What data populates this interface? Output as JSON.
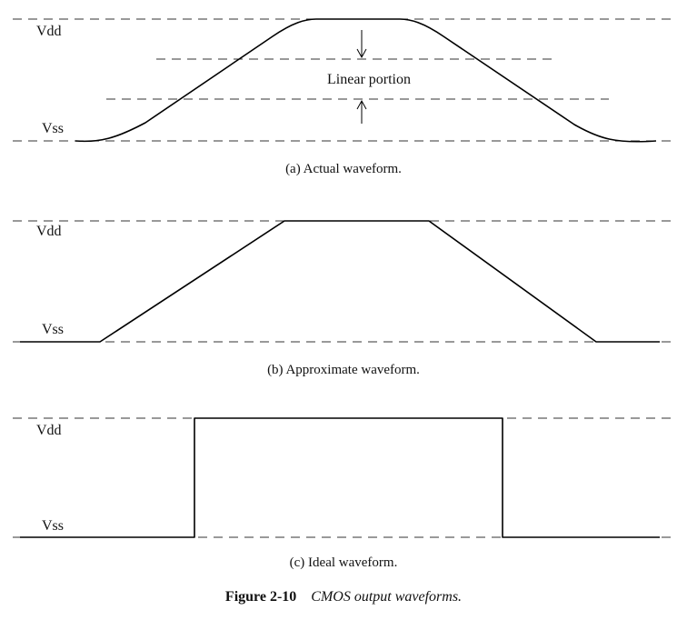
{
  "panel_a": {
    "vdd_label": "Vdd",
    "vss_label": "Vss",
    "linear_label": "Linear portion",
    "caption": "(a) Actual waveform."
  },
  "panel_b": {
    "vdd_label": "Vdd",
    "vss_label": "Vss",
    "caption": "(b) Approximate waveform."
  },
  "panel_c": {
    "vdd_label": "Vdd",
    "vss_label": "Vss",
    "caption": "(c) Ideal waveform."
  },
  "figure": {
    "number": "Figure 2-10",
    "title": "CMOS output waveforms."
  }
}
